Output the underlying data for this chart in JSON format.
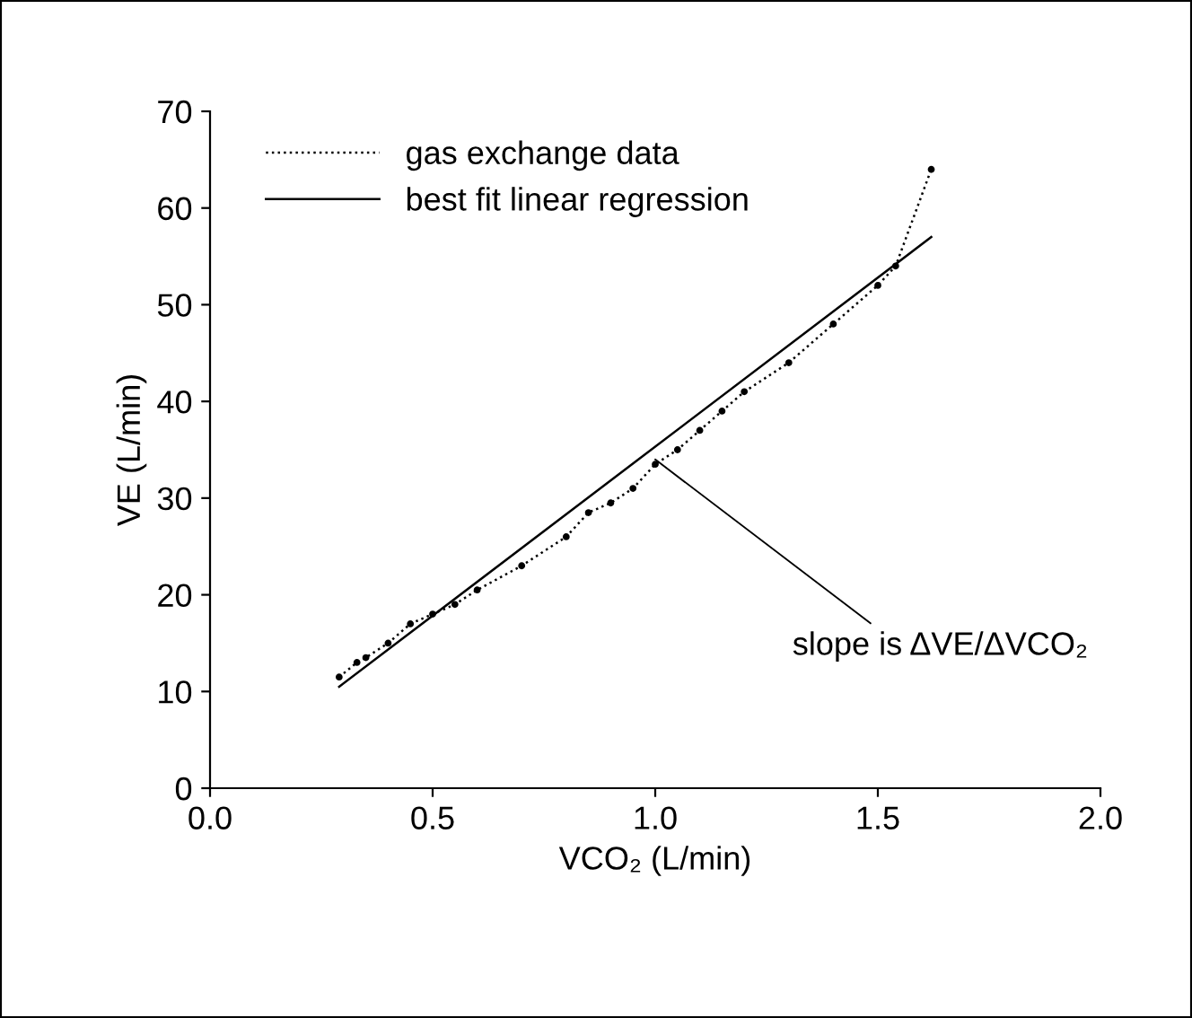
{
  "chart_data": {
    "type": "line",
    "xlabel": "VCO₂ (L/min)",
    "ylabel": "VE (L/min)",
    "xlim": [
      0,
      2
    ],
    "xticks": [
      {
        "value": 0,
        "label": "0.0"
      },
      {
        "value": 0.5,
        "label": "0.5"
      },
      {
        "value": 1,
        "label": "1.0"
      },
      {
        "value": 1.5,
        "label": "1.5"
      },
      {
        "value": 2,
        "label": "2.0"
      }
    ],
    "ylim": [
      0,
      70
    ],
    "yticks": [
      0,
      10,
      20,
      30,
      40,
      50,
      60,
      70
    ],
    "grid": false,
    "legend": "top left",
    "series": [
      {
        "name": "gas exchange data",
        "color": "#000000",
        "marker": "circle",
        "line_style": "dotted",
        "x": [
          0.29,
          0.33,
          0.35,
          0.4,
          0.45,
          0.5,
          0.55,
          0.6,
          0.7,
          0.8,
          0.85,
          0.9,
          0.95,
          1.0,
          1.05,
          1.1,
          1.15,
          1.2,
          1.3,
          1.4,
          1.5,
          1.54,
          1.62
        ],
        "values": [
          11.5,
          13,
          13.5,
          15,
          17,
          18,
          19,
          20.5,
          23,
          26,
          28.5,
          29.5,
          31,
          33.5,
          35,
          37,
          39,
          41,
          44,
          48,
          52,
          54,
          64
        ]
      },
      {
        "name": "best fit linear regression",
        "color": "#000000",
        "marker": "none",
        "line_style": "solid",
        "x": [
          0.29,
          1.62
        ],
        "values": [
          10.5,
          57
        ]
      }
    ],
    "annotations": [
      {
        "text": "slope is ΔVE/ΔVCO₂",
        "x": 1.0,
        "y": 34
      }
    ]
  }
}
